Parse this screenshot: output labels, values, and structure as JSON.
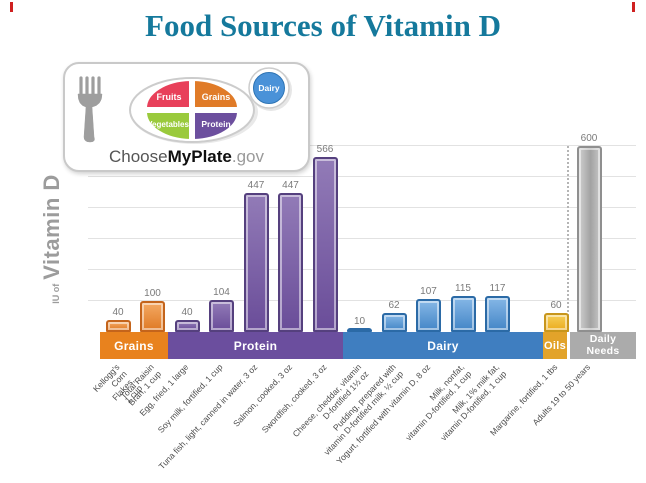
{
  "page": {
    "title": "Food Sources of Vitamin D",
    "title_color": "#15799C"
  },
  "myplate_logo": {
    "brand_choose": "Choose",
    "brand_myplate": "MyPlate",
    "brand_gov": ".gov",
    "sections": [
      {
        "label": "Fruits",
        "color": "#E8405A"
      },
      {
        "label": "Grains",
        "color": "#E07B28"
      },
      {
        "label": "Vegetables",
        "color": "#9ACA3C"
      },
      {
        "label": "Protein",
        "color": "#6C4F9E"
      },
      {
        "label": "Dairy",
        "color": "#4A92D8"
      }
    ]
  },
  "chart_data": {
    "type": "bar",
    "title": "Food Sources of Vitamin D",
    "ylabel": "IU of Vitamin D",
    "ylabel_prefix": "IU of",
    "ylabel_main": "Vitamin D",
    "ylim": [
      0,
      600
    ],
    "grid": true,
    "grid_interval": 100,
    "legend_position": "none",
    "separator": "dotted line before Daily Needs",
    "groups": [
      {
        "name": "Grains",
        "band_color": "#E8821E",
        "bars": [
          {
            "label": "Kellogg's Corn Flakes, 1 cup",
            "value": 40
          },
          {
            "label": "Total Raisin Bran, 1 cup",
            "value": 100
          }
        ]
      },
      {
        "name": "Protein",
        "band_color": "#6B4E9E",
        "bars": [
          {
            "label": "Egg, fried, 1 large",
            "value": 40
          },
          {
            "label": "Soy milk, fortified, 1 cup",
            "value": 104
          },
          {
            "label": "Tuna fish, light, canned in water, 3 oz",
            "value": 447
          },
          {
            "label": "Salmon, cooked, 3 oz",
            "value": 447
          },
          {
            "label": "Swordfish, cooked, 3 oz",
            "value": 566
          }
        ]
      },
      {
        "name": "Dairy",
        "band_color": "#3F7EC0",
        "bars": [
          {
            "label": "Cheese, cheddar, vitamin\nD-fortified 1½ oz",
            "value": 10
          },
          {
            "label": "Pudding, prepared with\nvitamin D-fortified milk, ½ cup",
            "value": 62
          },
          {
            "label": "Yogurt, fortified with vitamin D, 8 oz",
            "value": 107
          },
          {
            "label": "Milk, nonfat,\nvitamin D-fortified, 1 cup",
            "value": 115
          },
          {
            "label": "Milk, 1% milk fat,\nvitamin D-fortified, 1 cup",
            "value": 117
          }
        ]
      },
      {
        "name": "Oils",
        "band_color": "#E2A32A",
        "bars": [
          {
            "label": "Margarine, fortified, 1 tbs",
            "value": 60
          }
        ]
      },
      {
        "name": "Daily Needs",
        "band_label_line1": "Daily",
        "band_label_line2": "Needs",
        "band_color": "#ABABAB",
        "bars": [
          {
            "label": "Adults 19 to 50 years",
            "value": 600
          }
        ]
      }
    ]
  }
}
